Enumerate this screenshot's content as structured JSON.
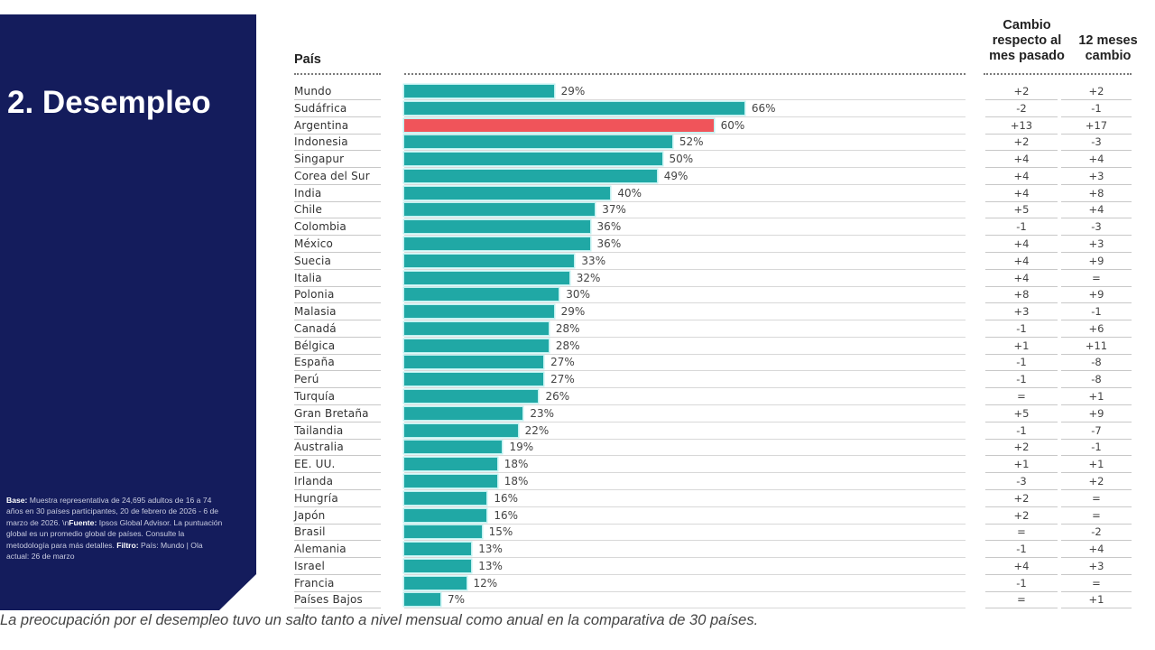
{
  "panel": {
    "title": "2. Desempleo",
    "note": {
      "base_label": "Base:",
      "base_text": " Muestra representativa de 24,695 adultos de 16 a 74 años en 30 países participantes, 20 de febrero de 2026 - 6 de marzo de 2026. \\n",
      "source_label": "Fuente:",
      "source_text": " Ipsos Global Advisor. La puntuación global es un promedio global de países. Consulte la metodología para más detalles. ",
      "filter_label": "Filtro:",
      "filter_text": " País: Mundo | Ola actual: 26 de marzo"
    }
  },
  "headers": {
    "country": "País",
    "month_change": "Cambio respecto al mes pasado",
    "year_change": "12 meses cambio"
  },
  "colors": {
    "bar": "#20a8a5",
    "highlight": "#f0545a",
    "panel": "#141c5c"
  },
  "caption": "La preocupación por el desempleo tuvo un salto tanto a nivel mensual como anual en la comparativa de 30 países.",
  "chart_data": {
    "type": "bar",
    "orientation": "horizontal",
    "title": "2. Desempleo",
    "xlabel": "",
    "ylabel": "País",
    "xlim": [
      0,
      100
    ],
    "grid": false,
    "value_suffix": "%",
    "highlight_category": "Argentina",
    "categories": [
      "Mundo",
      "Sudáfrica",
      "Argentina",
      "Indonesia",
      "Singapur",
      "Corea del Sur",
      "India",
      "Chile",
      "Colombia",
      "México",
      "Suecia",
      "Italia",
      "Polonia",
      "Malasia",
      "Canadá",
      "Bélgica",
      "España",
      "Perú",
      "Turquía",
      "Gran Bretaña",
      "Tailandia",
      "Australia",
      "EE. UU.",
      "Irlanda",
      "Hungría",
      "Japón",
      "Brasil",
      "Alemania",
      "Israel",
      "Francia",
      "Países Bajos"
    ],
    "values": [
      29,
      66,
      60,
      52,
      50,
      49,
      40,
      37,
      36,
      36,
      33,
      32,
      30,
      29,
      28,
      28,
      27,
      27,
      26,
      23,
      22,
      19,
      18,
      18,
      16,
      16,
      15,
      13,
      13,
      12,
      7
    ],
    "month_change": [
      "+2",
      "-2",
      "+13",
      "+2",
      "+4",
      "+4",
      "+4",
      "+5",
      "-1",
      "+4",
      "+4",
      "+4",
      "+8",
      "+3",
      "-1",
      "+1",
      "-1",
      "-1",
      "=",
      "+5",
      "-1",
      "+2",
      "+1",
      "-3",
      "+2",
      "+2",
      "=",
      "-1",
      "+4",
      "-1",
      "="
    ],
    "year_change": [
      "+2",
      "-1",
      "+17",
      "-3",
      "+4",
      "+3",
      "+8",
      "+4",
      "-3",
      "+3",
      "+9",
      "=",
      "+9",
      "-1",
      "+6",
      "+11",
      "-8",
      "-8",
      "+1",
      "+9",
      "-7",
      "-1",
      "+1",
      "+2",
      "=",
      "=",
      "-2",
      "+4",
      "+3",
      "=",
      "+1"
    ]
  }
}
